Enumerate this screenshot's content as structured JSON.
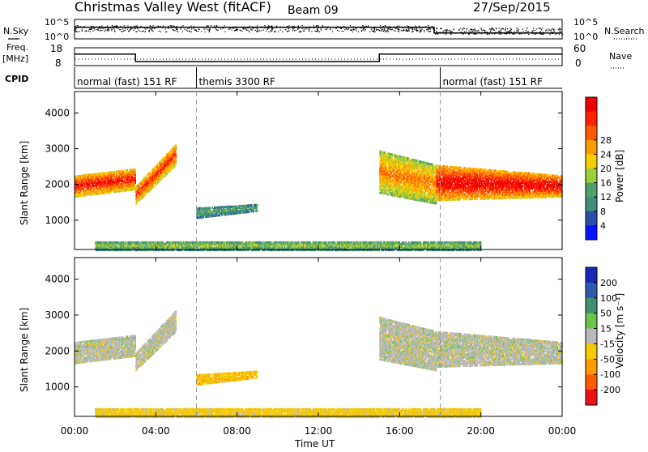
{
  "header": {
    "station": "Christmas Valley West (fitACF)",
    "beam": "Beam 09",
    "date": "27/Sep/2015"
  },
  "left_labels": {
    "nsky": "N.Sky",
    "freq": "Freq.",
    "freq_unit": "[MHz]",
    "cpid": "CPID"
  },
  "right_labels": {
    "nsearch": "N.Search",
    "nave": "Nave"
  },
  "noise_axis": {
    "left_top": "10^5",
    "left_bottom": "10^0",
    "right_top": "10^5",
    "right_bottom": "10^0"
  },
  "freq_axis": {
    "left_top": "18",
    "left_bottom": "8",
    "right_top": "60",
    "right_bottom": "0"
  },
  "cpid_modes": [
    {
      "label": "normal (fast) 151 RF",
      "start_h": 0,
      "end_h": 6
    },
    {
      "label": "themis 3300 RF",
      "start_h": 6,
      "end_h": 18
    },
    {
      "label": "normal (fast) 151 RF",
      "start_h": 18,
      "end_h": 24
    }
  ],
  "x_axis": {
    "label": "Time UT",
    "range_h": [
      0,
      24
    ],
    "ticks": [
      "00:00",
      "04:00",
      "08:00",
      "12:00",
      "16:00",
      "20:00",
      "00:00"
    ]
  },
  "power_panel": {
    "ylabel": "Slant Range [km]",
    "yticks": [
      "1000",
      "2000",
      "3000",
      "4000"
    ],
    "colorbar_label": "Power [dB]",
    "colorbar_ticks": [
      "4",
      "8",
      "12",
      "16",
      "20",
      "24",
      "28"
    ],
    "colors": [
      "#0a14ff",
      "#2a4fa8",
      "#3f8f7a",
      "#4fa06a",
      "#9ccd3a",
      "#f5d000",
      "#ff9a00",
      "#ff5a00",
      "#ff2000",
      "#ee0000"
    ]
  },
  "velocity_panel": {
    "ylabel": "Slant Range [km]",
    "yticks": [
      "1000",
      "2000",
      "3000",
      "4000"
    ],
    "colorbar_label": "Velocity [m s⁻¹]",
    "colorbar_ticks": [
      "200",
      "100",
      "50",
      "15",
      "-15",
      "-50",
      "-100",
      "-200"
    ],
    "colors": [
      "#1a28b8",
      "#2e5ab0",
      "#3f9070",
      "#6cc24a",
      "#b8b8b8",
      "#f5c800",
      "#ff9a00",
      "#ff5a00",
      "#ee1010"
    ]
  },
  "chart_data": {
    "type": "heatmap",
    "title": "Christmas Valley West (fitACF)",
    "xlabel": "Time UT",
    "ylabel": "Slant Range [km]",
    "x_range_h": [
      0,
      24
    ],
    "y_range_km": [
      180,
      4600
    ],
    "cpid_change_times_h": [
      6,
      18
    ],
    "frequency_mhz": [
      {
        "start_h": 0,
        "end_h": 3,
        "value": 14.5
      },
      {
        "start_h": 3,
        "end_h": 15,
        "value": 10.3
      },
      {
        "start_h": 15,
        "end_h": 24,
        "value": 14.5
      }
    ],
    "noise_level": [
      {
        "start_h": 0,
        "end_h": 17.7,
        "value": 3
      },
      {
        "start_h": 17.7,
        "end_h": 24,
        "value": 1.5
      }
    ],
    "scatter_features": [
      {
        "name": "early echo band",
        "t_start": 0.0,
        "t_end": 3.0,
        "range_low_km": [
          1700,
          1900
        ],
        "range_high_km": [
          2300,
          2500
        ],
        "power_db": 26,
        "velocity": 0
      },
      {
        "name": "rising echo band",
        "t_start": 3.0,
        "t_end": 5.0,
        "range_low_km": [
          1500,
          2600
        ],
        "range_high_km": [
          2000,
          3200
        ],
        "power_db": 24,
        "velocity": 0
      },
      {
        "name": "mid-range echoes",
        "t_start": 6.0,
        "t_end": 9.0,
        "range_low_km": [
          1100,
          1300
        ],
        "range_high_km": [
          1400,
          1500
        ],
        "power_db": 9,
        "velocity": -40
      },
      {
        "name": "near-range clutter",
        "t_start": 1.0,
        "t_end": 20.0,
        "range_low_km": [
          200,
          200
        ],
        "range_high_km": [
          450,
          450
        ],
        "power_db": 12,
        "velocity": -30
      },
      {
        "name": "afternoon echo band",
        "t_start": 15.0,
        "t_end": 17.8,
        "range_low_km": [
          1800,
          1500
        ],
        "range_high_km": [
          3000,
          2600
        ],
        "power_db": 20,
        "velocity": 0
      },
      {
        "name": "evening strong echoes",
        "t_start": 17.8,
        "t_end": 24.0,
        "range_low_km": [
          1600,
          1700
        ],
        "range_high_km": [
          2600,
          2300
        ],
        "power_db": 28,
        "velocity": 0
      }
    ]
  }
}
